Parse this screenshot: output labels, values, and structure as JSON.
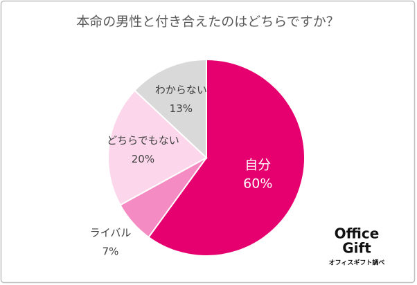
{
  "chart_data": {
    "type": "pie",
    "title": "本命の男性と付き合えたのはどちらですか？",
    "categories": [
      "自分",
      "ライバル",
      "どちらでもない",
      "わからない"
    ],
    "values": [
      60,
      7,
      20,
      13
    ],
    "value_labels": [
      "60%",
      "7%",
      "20%",
      "13%"
    ],
    "colors": [
      "#e6006f",
      "#f58bc3",
      "#fcd7eb",
      "#d9d9d9"
    ],
    "start_angle": 0,
    "direction": "clockwise"
  },
  "logo": [
    "Office",
    "Gift"
  ],
  "source": "オフィスギフト調べ"
}
